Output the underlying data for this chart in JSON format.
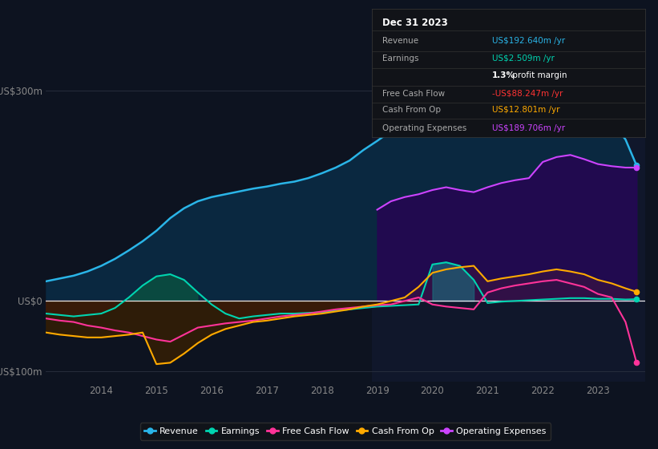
{
  "bg_color": "#0d1320",
  "plot_bg_color": "#0d1320",
  "years": [
    2013.0,
    2013.25,
    2013.5,
    2013.75,
    2014.0,
    2014.25,
    2014.5,
    2014.75,
    2015.0,
    2015.25,
    2015.5,
    2015.75,
    2016.0,
    2016.25,
    2016.5,
    2016.75,
    2017.0,
    2017.25,
    2017.5,
    2017.75,
    2018.0,
    2018.25,
    2018.5,
    2018.75,
    2019.0,
    2019.25,
    2019.5,
    2019.75,
    2020.0,
    2020.25,
    2020.5,
    2020.75,
    2021.0,
    2021.25,
    2021.5,
    2021.75,
    2022.0,
    2022.25,
    2022.5,
    2022.75,
    2023.0,
    2023.25,
    2023.5,
    2023.7
  ],
  "revenue": [
    28,
    32,
    36,
    42,
    50,
    60,
    72,
    85,
    100,
    118,
    132,
    142,
    148,
    152,
    156,
    160,
    163,
    167,
    170,
    175,
    182,
    190,
    200,
    215,
    228,
    242,
    255,
    265,
    272,
    278,
    282,
    285,
    278,
    270,
    265,
    272,
    285,
    295,
    300,
    290,
    272,
    255,
    230,
    193
  ],
  "earnings": [
    -18,
    -20,
    -22,
    -20,
    -18,
    -10,
    5,
    22,
    35,
    38,
    30,
    12,
    -5,
    -18,
    -25,
    -22,
    -20,
    -18,
    -18,
    -17,
    -16,
    -14,
    -12,
    -10,
    -8,
    -7,
    -6,
    -5,
    52,
    55,
    50,
    30,
    -3,
    -1,
    0,
    1,
    2,
    3,
    4,
    4,
    3,
    3,
    2,
    2.5
  ],
  "free_cash_flow": [
    -25,
    -28,
    -30,
    -35,
    -38,
    -42,
    -45,
    -50,
    -55,
    -58,
    -48,
    -38,
    -35,
    -32,
    -30,
    -28,
    -25,
    -22,
    -20,
    -18,
    -15,
    -12,
    -10,
    -8,
    -6,
    -5,
    0,
    5,
    -5,
    -8,
    -10,
    -12,
    12,
    18,
    22,
    25,
    28,
    30,
    25,
    20,
    10,
    5,
    -30,
    -88
  ],
  "cash_from_op": [
    -45,
    -48,
    -50,
    -52,
    -52,
    -50,
    -48,
    -45,
    -90,
    -88,
    -75,
    -60,
    -48,
    -40,
    -35,
    -30,
    -28,
    -25,
    -22,
    -20,
    -18,
    -15,
    -12,
    -8,
    -5,
    0,
    5,
    20,
    40,
    45,
    48,
    50,
    28,
    32,
    35,
    38,
    42,
    45,
    42,
    38,
    30,
    25,
    18,
    13
  ],
  "op_expenses": [
    0,
    0,
    0,
    0,
    0,
    0,
    0,
    0,
    0,
    0,
    0,
    0,
    0,
    0,
    0,
    0,
    0,
    0,
    0,
    0,
    0,
    0,
    0,
    0,
    130,
    142,
    148,
    152,
    158,
    162,
    158,
    155,
    162,
    168,
    172,
    175,
    198,
    205,
    208,
    202,
    195,
    192,
    190,
    190
  ],
  "ylim": [
    -115,
    320
  ],
  "xlim": [
    2013.0,
    2023.85
  ],
  "yticks": [
    -100,
    0,
    300
  ],
  "ytick_labels": [
    "-US$100m",
    "US$0",
    "US$300m"
  ],
  "xticks": [
    2014,
    2015,
    2016,
    2017,
    2018,
    2019,
    2020,
    2021,
    2022,
    2023
  ],
  "revenue_color": "#2ab5e8",
  "earnings_color": "#00d4b0",
  "free_cash_flow_color": "#ff3399",
  "cash_from_op_color": "#ffaa00",
  "op_expenses_color": "#cc44ff",
  "revenue_fill": "#0a2840",
  "earnings_fill_pos": "#0a5040",
  "earnings_fill_neg": "#3a0c20",
  "cash_from_op_fill_neg": "#3a2000",
  "cash_from_op_fill_pos": "#7a5500",
  "op_expenses_fill": "#2a0055",
  "overlay_rect_x": 2018.9,
  "overlay_color": "#141b35",
  "info_box": {
    "title": "Dec 31 2023",
    "rows": [
      {
        "label": "Revenue",
        "value": "US$192.640m /yr",
        "value_color": "#2ab5e8"
      },
      {
        "label": "Earnings",
        "value": "US$2.509m /yr",
        "value_color": "#00d4b0"
      },
      {
        "label": "",
        "value": "1.3% profit margin",
        "value_color": "#ffffff",
        "bold_part": true
      },
      {
        "label": "Free Cash Flow",
        "value": "-US$88.247m /yr",
        "value_color": "#ff3333"
      },
      {
        "label": "Cash From Op",
        "value": "US$12.801m /yr",
        "value_color": "#ffaa00"
      },
      {
        "label": "Operating Expenses",
        "value": "US$189.706m /yr",
        "value_color": "#cc44ff"
      }
    ]
  },
  "legend": [
    {
      "label": "Revenue",
      "color": "#2ab5e8"
    },
    {
      "label": "Earnings",
      "color": "#00d4b0"
    },
    {
      "label": "Free Cash Flow",
      "color": "#ff3399"
    },
    {
      "label": "Cash From Op",
      "color": "#ffaa00"
    },
    {
      "label": "Operating Expenses",
      "color": "#cc44ff"
    }
  ]
}
